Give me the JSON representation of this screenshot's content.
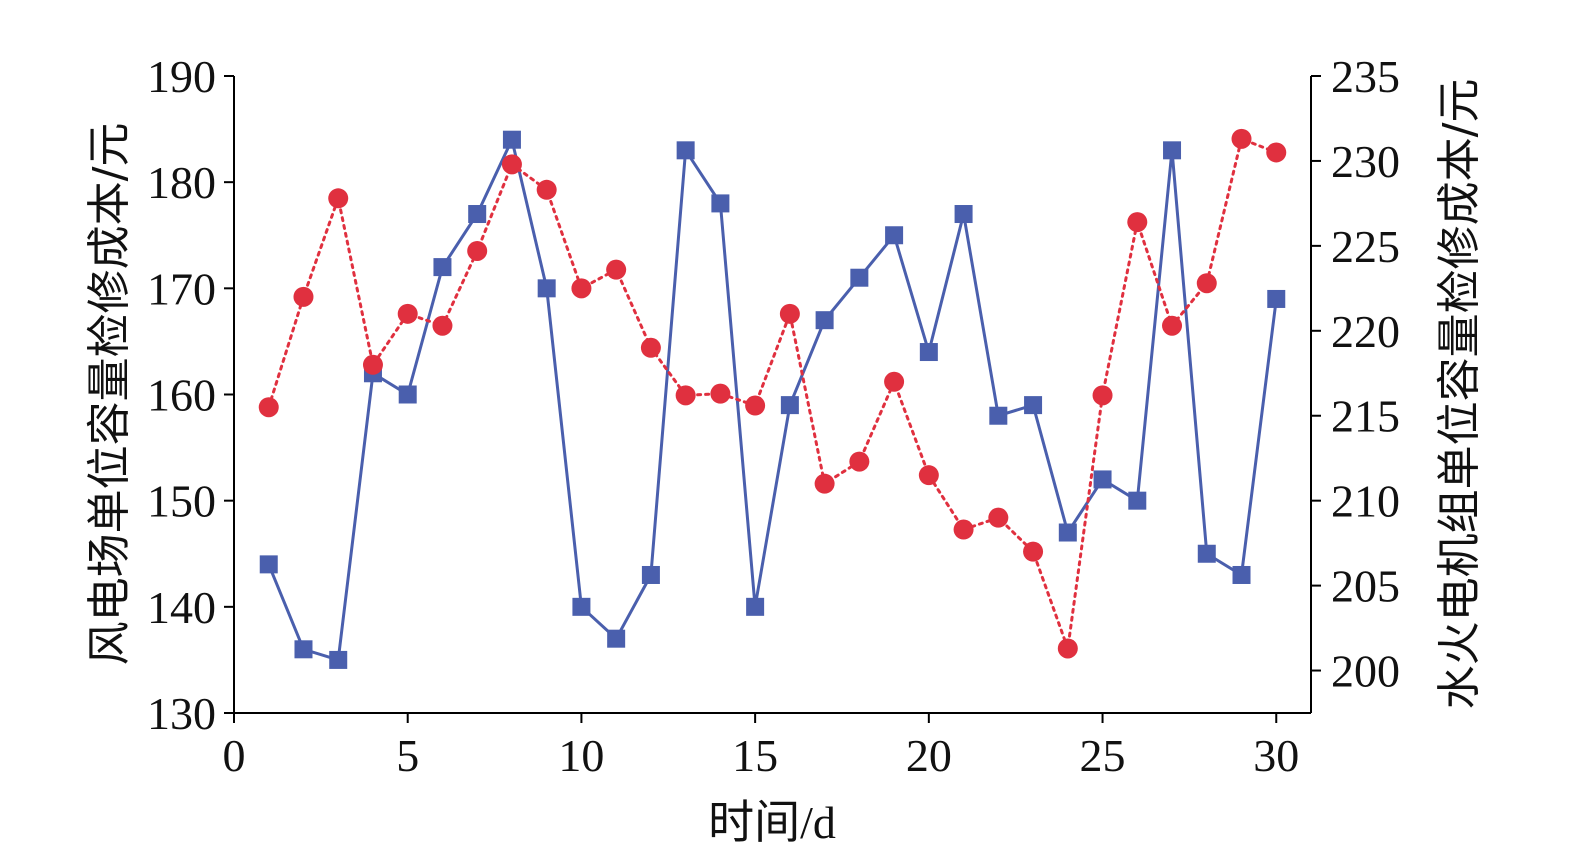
{
  "chart_data": {
    "type": "line",
    "xlabel": "时间/d",
    "ylabel_left": "风电场单位容量检修成本/元",
    "ylabel_right": "水火电机组单位容量检修成本/元",
    "xlim": [
      0,
      31
    ],
    "xticks": [
      0,
      5,
      10,
      15,
      20,
      25,
      30
    ],
    "ylim_left": [
      130,
      190
    ],
    "yticks_left": [
      130,
      140,
      150,
      160,
      170,
      180,
      190
    ],
    "ylim_right": [
      197.5,
      235
    ],
    "yticks_right": [
      200,
      205,
      210,
      215,
      220,
      225,
      230,
      235
    ],
    "grid": false,
    "x": [
      1,
      2,
      3,
      4,
      5,
      6,
      7,
      8,
      9,
      10,
      11,
      12,
      13,
      14,
      15,
      16,
      17,
      18,
      19,
      20,
      21,
      22,
      23,
      24,
      25,
      26,
      27,
      28,
      29,
      30
    ],
    "series": [
      {
        "axis": "left",
        "color": "#4a5fad",
        "marker": "square",
        "line": "solid",
        "values": [
          144,
          136,
          135,
          162,
          160,
          172,
          177,
          184,
          170,
          140,
          137,
          143,
          183,
          178,
          140,
          159,
          167,
          171,
          175,
          164,
          177,
          158,
          159,
          147,
          152,
          150,
          183,
          145,
          143,
          169
        ]
      },
      {
        "axis": "right",
        "color": "#e0303f",
        "marker": "circle",
        "line": "dotted",
        "values": [
          215.5,
          222,
          227.8,
          218,
          221,
          220.3,
          224.7,
          229.8,
          228.3,
          222.5,
          223.6,
          219,
          216.2,
          216.3,
          215.6,
          221,
          211,
          212.3,
          217,
          211.5,
          208.3,
          209,
          207,
          201.3,
          216.2,
          226.4,
          220.3,
          222.8,
          231.3,
          230.5
        ]
      }
    ]
  }
}
